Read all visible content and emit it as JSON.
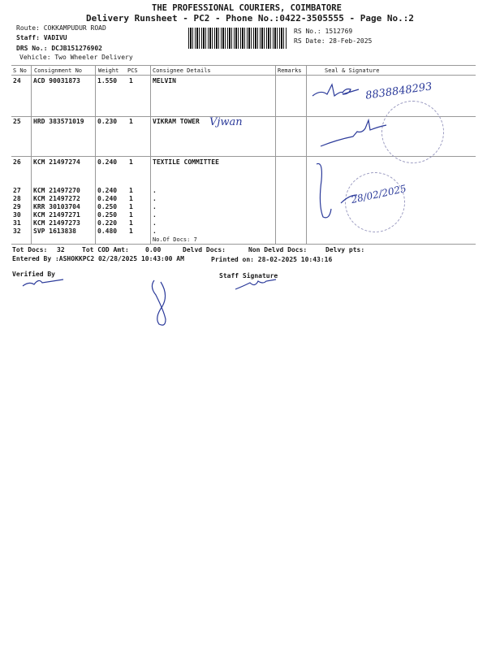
{
  "header": {
    "company": "THE PROFESSIONAL COURIERS, COIMBATORE",
    "subtitle": "Delivery Runsheet - PC2 - Phone No.:0422-3505555 - Page No.:2",
    "route": "Route: COKKAMPUDUR ROAD",
    "staff": "Staff: VADIVU",
    "drs_no": "DRS No.: DCJB151276902",
    "vehicle": "Vehicle: Two Wheeler Delivery",
    "rs_no": "RS No.: 1512769",
    "rs_date": "RS Date: 28-Feb-2025"
  },
  "table": {
    "columns": [
      "S No",
      "Consignment No",
      "Weight",
      "PCS",
      "Consignee Details",
      "Remarks",
      "Seal & Signature"
    ],
    "rows": [
      {
        "sno": "24",
        "consignment": "ACD 90031873",
        "weight": "1.550",
        "pcs": "1",
        "consignee": "MELVIN"
      },
      {
        "sno": "25",
        "consignment": "HRD 383571019",
        "weight": "0.230",
        "pcs": "1",
        "consignee": "VIKRAM TOWER"
      },
      {
        "sno": "26",
        "consignment": "KCM 21497274",
        "weight": "0.240",
        "pcs": "1",
        "consignee": "TEXTILE COMMITTEE"
      },
      {
        "sno": "27",
        "consignment": "KCM 21497270",
        "weight": "0.240",
        "pcs": "1",
        "consignee": "."
      },
      {
        "sno": "28",
        "consignment": "KCM 21497272",
        "weight": "0.240",
        "pcs": "1",
        "consignee": "."
      },
      {
        "sno": "29",
        "consignment": "KRR 30103704",
        "weight": "0.250",
        "pcs": "1",
        "consignee": "."
      },
      {
        "sno": "30",
        "consignment": "KCM 21497271",
        "weight": "0.250",
        "pcs": "1",
        "consignee": "."
      },
      {
        "sno": "31",
        "consignment": "KCM 21497273",
        "weight": "0.220",
        "pcs": "1",
        "consignee": "."
      },
      {
        "sno": "32",
        "consignment": "SVP 1613838",
        "weight": "0.480",
        "pcs": "1",
        "consignee": "."
      }
    ],
    "no_of_docs": "No.Of Docs: 7"
  },
  "handwritten": {
    "row25_note": "Vjwan",
    "phone": "8838848293",
    "date": "28/02/2025"
  },
  "footer": {
    "tot_docs_label": "Tot Docs:",
    "tot_docs": "32",
    "tot_cod_label": "Tot COD Amt:",
    "tot_cod": "0.00",
    "delvd_docs": "Delvd Docs:",
    "non_delvd_docs": "Non Delvd Docs:",
    "delvy_pts": "Delvy pts:",
    "entered_by": "Entered By :ASHOKKPC2 02/28/2025 10:43:00 AM",
    "printed_on": "Printed on: 28-02-2025 10:43:16",
    "verified_by": "Verified By",
    "staff_signature": "Staff Signature"
  },
  "colors": {
    "ink": "#2b3a9a",
    "text": "#1a1a1a",
    "rule": "#999999"
  }
}
